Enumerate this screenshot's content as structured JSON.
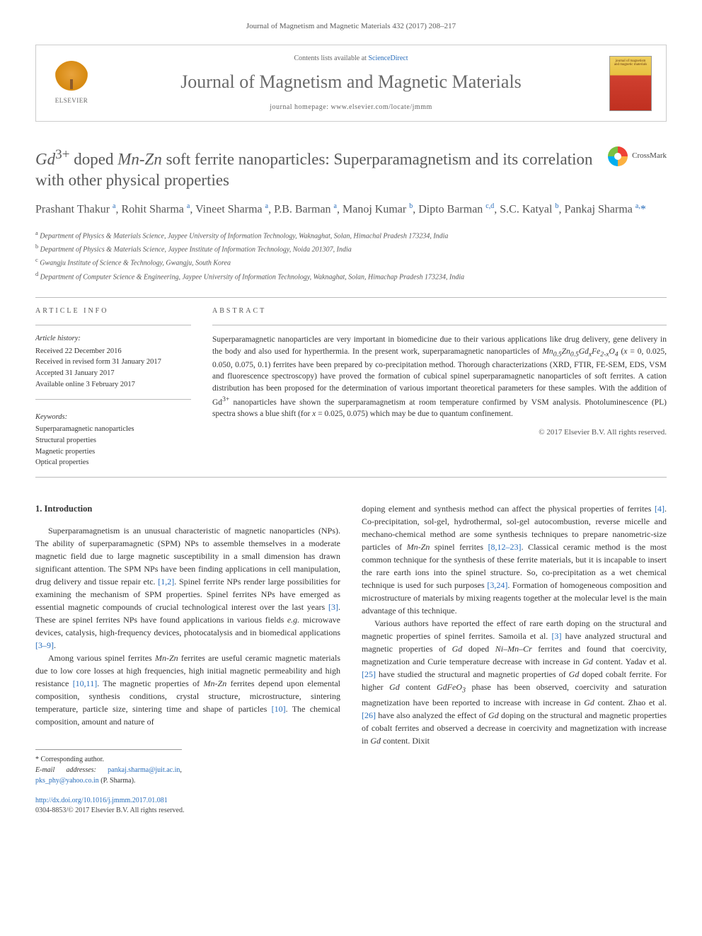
{
  "journal_ref": "Journal of Magnetism and Magnetic Materials 432 (2017) 208–217",
  "header": {
    "contents_prefix": "Contents lists available at ",
    "contents_link": "ScienceDirect",
    "journal_title": "Journal of Magnetism and Magnetic Materials",
    "homepage_prefix": "journal homepage: ",
    "homepage_url": "www.elsevier.com/locate/jmmm",
    "elsevier": "ELSEVIER",
    "cover_text": "journal of magnetism and magnetic materials"
  },
  "title": {
    "html": "<i>Gd</i><sup>3+</sup> doped <i>Mn-Zn</i> soft ferrite nanoparticles: Superparamagnetism and its correlation with other physical properties",
    "crossmark": "CrossMark"
  },
  "authors_html": "Prashant Thakur <sup>a</sup>, Rohit Sharma <sup>a</sup>, Vineet Sharma <sup>a</sup>, P.B. Barman <sup>a</sup>, Manoj Kumar <sup>b</sup>, Dipto Barman <sup>c,d</sup>, S.C. Katyal <sup>b</sup>, Pankaj Sharma <sup>a,</sup><span class=\"corr\">*</span>",
  "affiliations": {
    "a": "Department of Physics & Materials Science, Jaypee University of Information Technology, Waknaghat, Solan, Himachal Pradesh 173234, India",
    "b": "Department of Physics & Materials Science, Jaypee Institute of Information Technology, Noida 201307, India",
    "c": "Gwangju Institute of Science & Technology, Gwangju, South Korea",
    "d": "Department of Computer Science & Engineering, Jaypee University of Information Technology, Waknaghat, Solan, Himachap Pradesh 173234, India"
  },
  "info": {
    "heading": "ARTICLE INFO",
    "history_heading": "Article history:",
    "received": "Received 22 December 2016",
    "revised": "Received in revised form 31 January 2017",
    "accepted": "Accepted 31 January 2017",
    "online": "Available online 3 February 2017",
    "keywords_heading": "Keywords:",
    "kw1": "Superparamagnetic nanoparticles",
    "kw2": "Structural properties",
    "kw3": "Magnetic properties",
    "kw4": "Optical properties"
  },
  "abstract": {
    "heading": "ABSTRACT",
    "text_html": "Superparamagnetic nanoparticles are very important in biomedicine due to their various applications like drug delivery, gene delivery in the body and also used for hyperthermia. In the present work, superparamagnetic nanoparticles of <i>Mn<sub>0.5</sub>Zn<sub>0.5</sub>Gd<sub>x</sub>Fe<sub>2-x</sub>O<sub>4</sub></i> (<i>x</i> = 0, 0.025, 0.050, 0.075, 0.1) ferrites have been prepared by co-precipitation method. Thorough characterizations (XRD, FTIR, FE-SEM, EDS, VSM and fluorescence spectroscopy) have proved the formation of cubical spinel superparamagnetic nanoparticles of soft ferrites. A cation distribution has been proposed for the determination of various important theoretical parameters for these samples. With the addition of Gd<sup>3+</sup> nanoparticles have shown the superparamagnetism at room temperature confirmed by VSM analysis. Photoluminescence (PL) spectra shows a blue shift (for <i>x</i> = 0.025, 0.075) which may be due to quantum confinement.",
    "copyright": "© 2017 Elsevier B.V. All rights reserved."
  },
  "body": {
    "section_heading": "1. Introduction",
    "para1_html": "Superparamagnetism is an unusual characteristic of magnetic nanoparticles (NPs). The ability of superparamagnetic (SPM) NPs to assemble themselves in a moderate magnetic field due to large magnetic susceptibility in a small dimension has drawn significant attention. The SPM NPs have been finding applications in cell manipulation, drug delivery and tissue repair etc. <a>[1,2]</a>. Spinel ferrite NPs render large possibilities for examining the mechanism of SPM properties. Spinel ferrites NPs have emerged as essential magnetic compounds of crucial technological interest over the last years <a>[3]</a>. These are spinel ferrites NPs have found applications in various fields <i>e.g.</i> microwave devices, catalysis, high-frequency devices, photocatalysis and in biomedical applications <a>[3–9]</a>.",
    "para2_html": "Among various spinel ferrites <i>Mn-Zn</i> ferrites are useful ceramic magnetic materials due to low core losses at high frequencies, high initial magnetic permeability and high resistance <a>[10,11]</a>. The magnetic properties of <i>Mn-Zn</i> ferrites depend upon elemental composition, synthesis conditions, crystal structure, microstructure, sintering temperature, particle size, sintering time and shape of particles <a>[10]</a>. The chemical composition, amount and nature of",
    "para3_html": "doping element and synthesis method can affect the physical properties of ferrites <a>[4]</a>. Co-precipitation, sol-gel, hydrothermal, sol-gel autocombustion, reverse micelle and mechano-chemical method are some synthesis techniques to prepare nanometric-size particles of <i>Mn-Zn</i> spinel ferrites <a>[8,12–23]</a>. Classical ceramic method is the most common technique for the synthesis of these ferrite materials, but it is incapable to insert the rare earth ions into the spinel structure. So, co-precipitation as a wet chemical technique is used for such purposes <a>[3,24]</a>. Formation of homogeneous composition and microstructure of materials by mixing reagents together at the molecular level is the main advantage of this technique.",
    "para4_html": "Various authors have reported the effect of rare earth doping on the structural and magnetic properties of spinel ferrites. Samoila et al. <a>[3]</a> have analyzed structural and magnetic properties of <i>Gd</i> doped <i>Ni–Mn–Cr</i> ferrites and found that coercivity, magnetization and Curie temperature decrease with increase in <i>Gd</i> content. Yadav et al. <a>[25]</a> have studied the structural and magnetic properties of <i>Gd</i> doped cobalt ferrite. For higher <i>Gd</i> content <i>GdFeO<sub>3</sub></i> phase has been observed, coercivity and saturation magnetization have been reported to increase with increase in <i>Gd</i> content. Zhao et al. <a>[26]</a> have also analyzed the effect of <i>Gd</i> doping on the structural and magnetic properties of cobalt ferrites and observed a decrease in coercivity and magnetization with increase in <i>Gd</i> content. Dixit"
  },
  "footnotes": {
    "corr_label": "* Corresponding author.",
    "email_label": "E-mail addresses:",
    "email1": "pankaj.sharma@juit.ac.in",
    "email2": "pks_phy@yahoo.co.in",
    "email_suffix": "(P. Sharma)."
  },
  "footer": {
    "doi": "http://dx.doi.org/10.1016/j.jmmm.2017.01.081",
    "issn_line": "0304-8853/© 2017 Elsevier B.V. All rights reserved."
  },
  "colors": {
    "link": "#2a6ebb",
    "text": "#333333",
    "muted": "#5a5a5a",
    "border": "#cccccc"
  }
}
